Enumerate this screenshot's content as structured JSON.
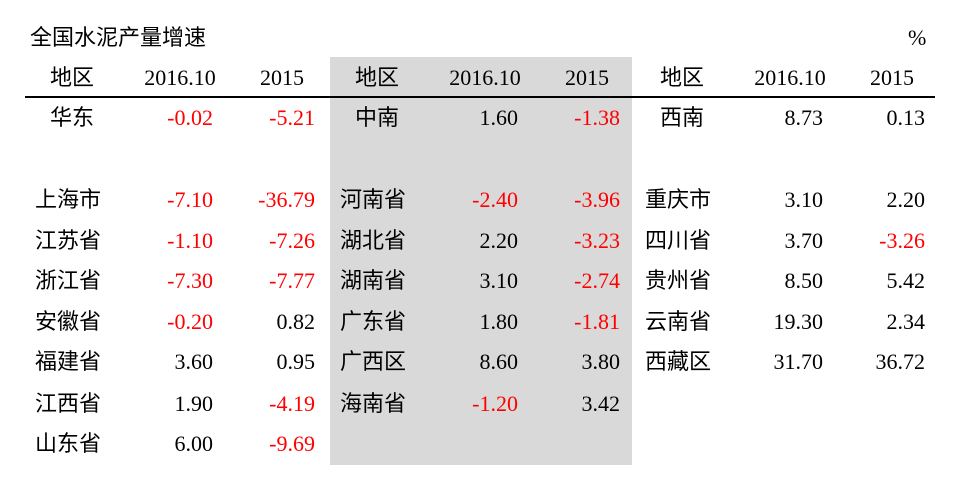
{
  "header": {
    "title": "全国水泥产量增速",
    "unit": "%"
  },
  "panels": [
    {
      "shaded": false,
      "columns": [
        "地区",
        "2016.10",
        "2015"
      ],
      "region": [
        "华东",
        "-0.02",
        "-5.21"
      ],
      "rows": [
        [
          "上海市",
          "-7.10",
          "-36.79"
        ],
        [
          "江苏省",
          "-1.10",
          "-7.26"
        ],
        [
          "浙江省",
          "-7.30",
          "-7.77"
        ],
        [
          "安徽省",
          "-0.20",
          "0.82"
        ],
        [
          "福建省",
          "3.60",
          "0.95"
        ],
        [
          "江西省",
          "1.90",
          "-4.19"
        ],
        [
          "山东省",
          "6.00",
          "-9.69"
        ]
      ]
    },
    {
      "shaded": true,
      "columns": [
        "地区",
        "2016.10",
        "2015"
      ],
      "region": [
        "中南",
        "1.60",
        "-1.38"
      ],
      "rows": [
        [
          "河南省",
          "-2.40",
          "-3.96"
        ],
        [
          "湖北省",
          "2.20",
          "-3.23"
        ],
        [
          "湖南省",
          "3.10",
          "-2.74"
        ],
        [
          "广东省",
          "1.80",
          "-1.81"
        ],
        [
          "广西区",
          "8.60",
          "3.80"
        ],
        [
          "海南省",
          "-1.20",
          "3.42"
        ]
      ]
    },
    {
      "shaded": false,
      "columns": [
        "地区",
        "2016.10",
        "2015"
      ],
      "region": [
        "西南",
        "8.73",
        "0.13"
      ],
      "rows": [
        [
          "重庆市",
          "3.10",
          "2.20"
        ],
        [
          "四川省",
          "3.70",
          "-3.26"
        ],
        [
          "贵州省",
          "8.50",
          "5.42"
        ],
        [
          "云南省",
          "19.30",
          "2.34"
        ],
        [
          "西藏区",
          "31.70",
          "36.72"
        ]
      ]
    }
  ],
  "colors": {
    "negative": "#ff0000",
    "text": "#000000",
    "shade": "#d9d9d9"
  }
}
